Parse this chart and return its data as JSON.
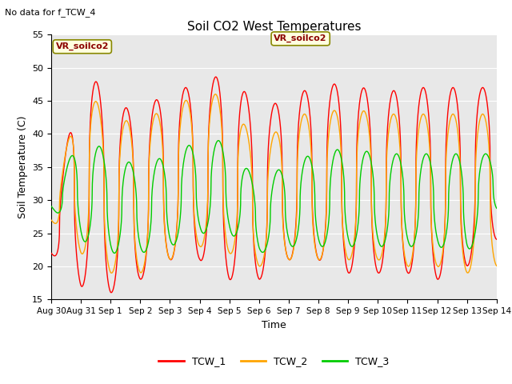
{
  "title": "Soil CO2 West Temperatures",
  "subtitle": "No data for f_TCW_4",
  "xlabel": "Time",
  "ylabel": "Soil Temperature (C)",
  "ylim": [
    15,
    55
  ],
  "yticks": [
    15,
    20,
    25,
    30,
    35,
    40,
    45,
    50,
    55
  ],
  "annotation": "VR_soilco2",
  "legend_entries": [
    "TCW_1",
    "TCW_2",
    "TCW_3"
  ],
  "colors": {
    "TCW_1": "#ff0000",
    "TCW_2": "#ffa500",
    "TCW_3": "#00cc00"
  },
  "bg_color": "#e8e8e8",
  "xtick_labels": [
    "Aug 30",
    "Aug 31",
    "Sep 1",
    "Sep 2",
    "Sep 3",
    "Sep 4",
    "Sep 5",
    "Sep 6",
    "Sep 7",
    "Sep 8",
    "Sep 9",
    "Sep 10",
    "Sep 11",
    "Sep 12",
    "Sep 13",
    "Sep 14"
  ],
  "xtick_positions": [
    0,
    1,
    2,
    3,
    4,
    5,
    6,
    7,
    8,
    9,
    10,
    11,
    12,
    13,
    14,
    15
  ]
}
